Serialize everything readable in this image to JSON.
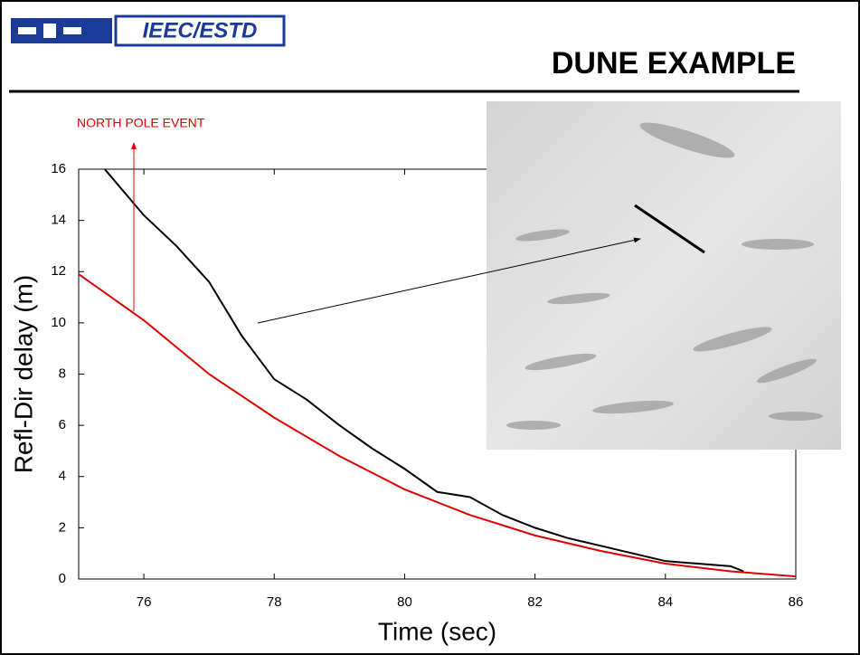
{
  "header": {
    "logo": "IEEC/ESTD",
    "title": "DUNE EXAMPLE"
  },
  "chart_data": {
    "type": "line",
    "x_label": "Time (sec)",
    "y_label": "Refl-Dir delay (m)",
    "annotation": "NORTH POLE EVENT",
    "xlim": [
      75,
      86
    ],
    "xticks": [
      76,
      78,
      80,
      82,
      84,
      86
    ],
    "ylim": [
      0,
      16
    ],
    "yticks": [
      0,
      2,
      4,
      6,
      8,
      10,
      12,
      14,
      16
    ],
    "series": [
      {
        "color": "#000000",
        "x": [
          75.4,
          76,
          76.5,
          77,
          77.5,
          78,
          78.5,
          79,
          79.5,
          80,
          80.5,
          81,
          81.5,
          82,
          82.5,
          83,
          83.5,
          84,
          84.5,
          85,
          85.2
        ],
        "values": [
          16,
          14.2,
          13,
          11.6,
          9.5,
          7.8,
          7.0,
          6.0,
          5.1,
          4.3,
          3.4,
          3.2,
          2.5,
          2.0,
          1.6,
          1.3,
          1.0,
          0.7,
          0.6,
          0.5,
          0.3
        ]
      },
      {
        "color": "#e00000",
        "x": [
          75,
          76,
          77,
          78,
          79,
          80,
          81,
          82,
          83,
          84,
          85,
          86
        ],
        "values": [
          11.9,
          10.1,
          8.0,
          6.3,
          4.8,
          3.5,
          2.5,
          1.7,
          1.1,
          0.6,
          0.3,
          0.1
        ]
      }
    ]
  }
}
